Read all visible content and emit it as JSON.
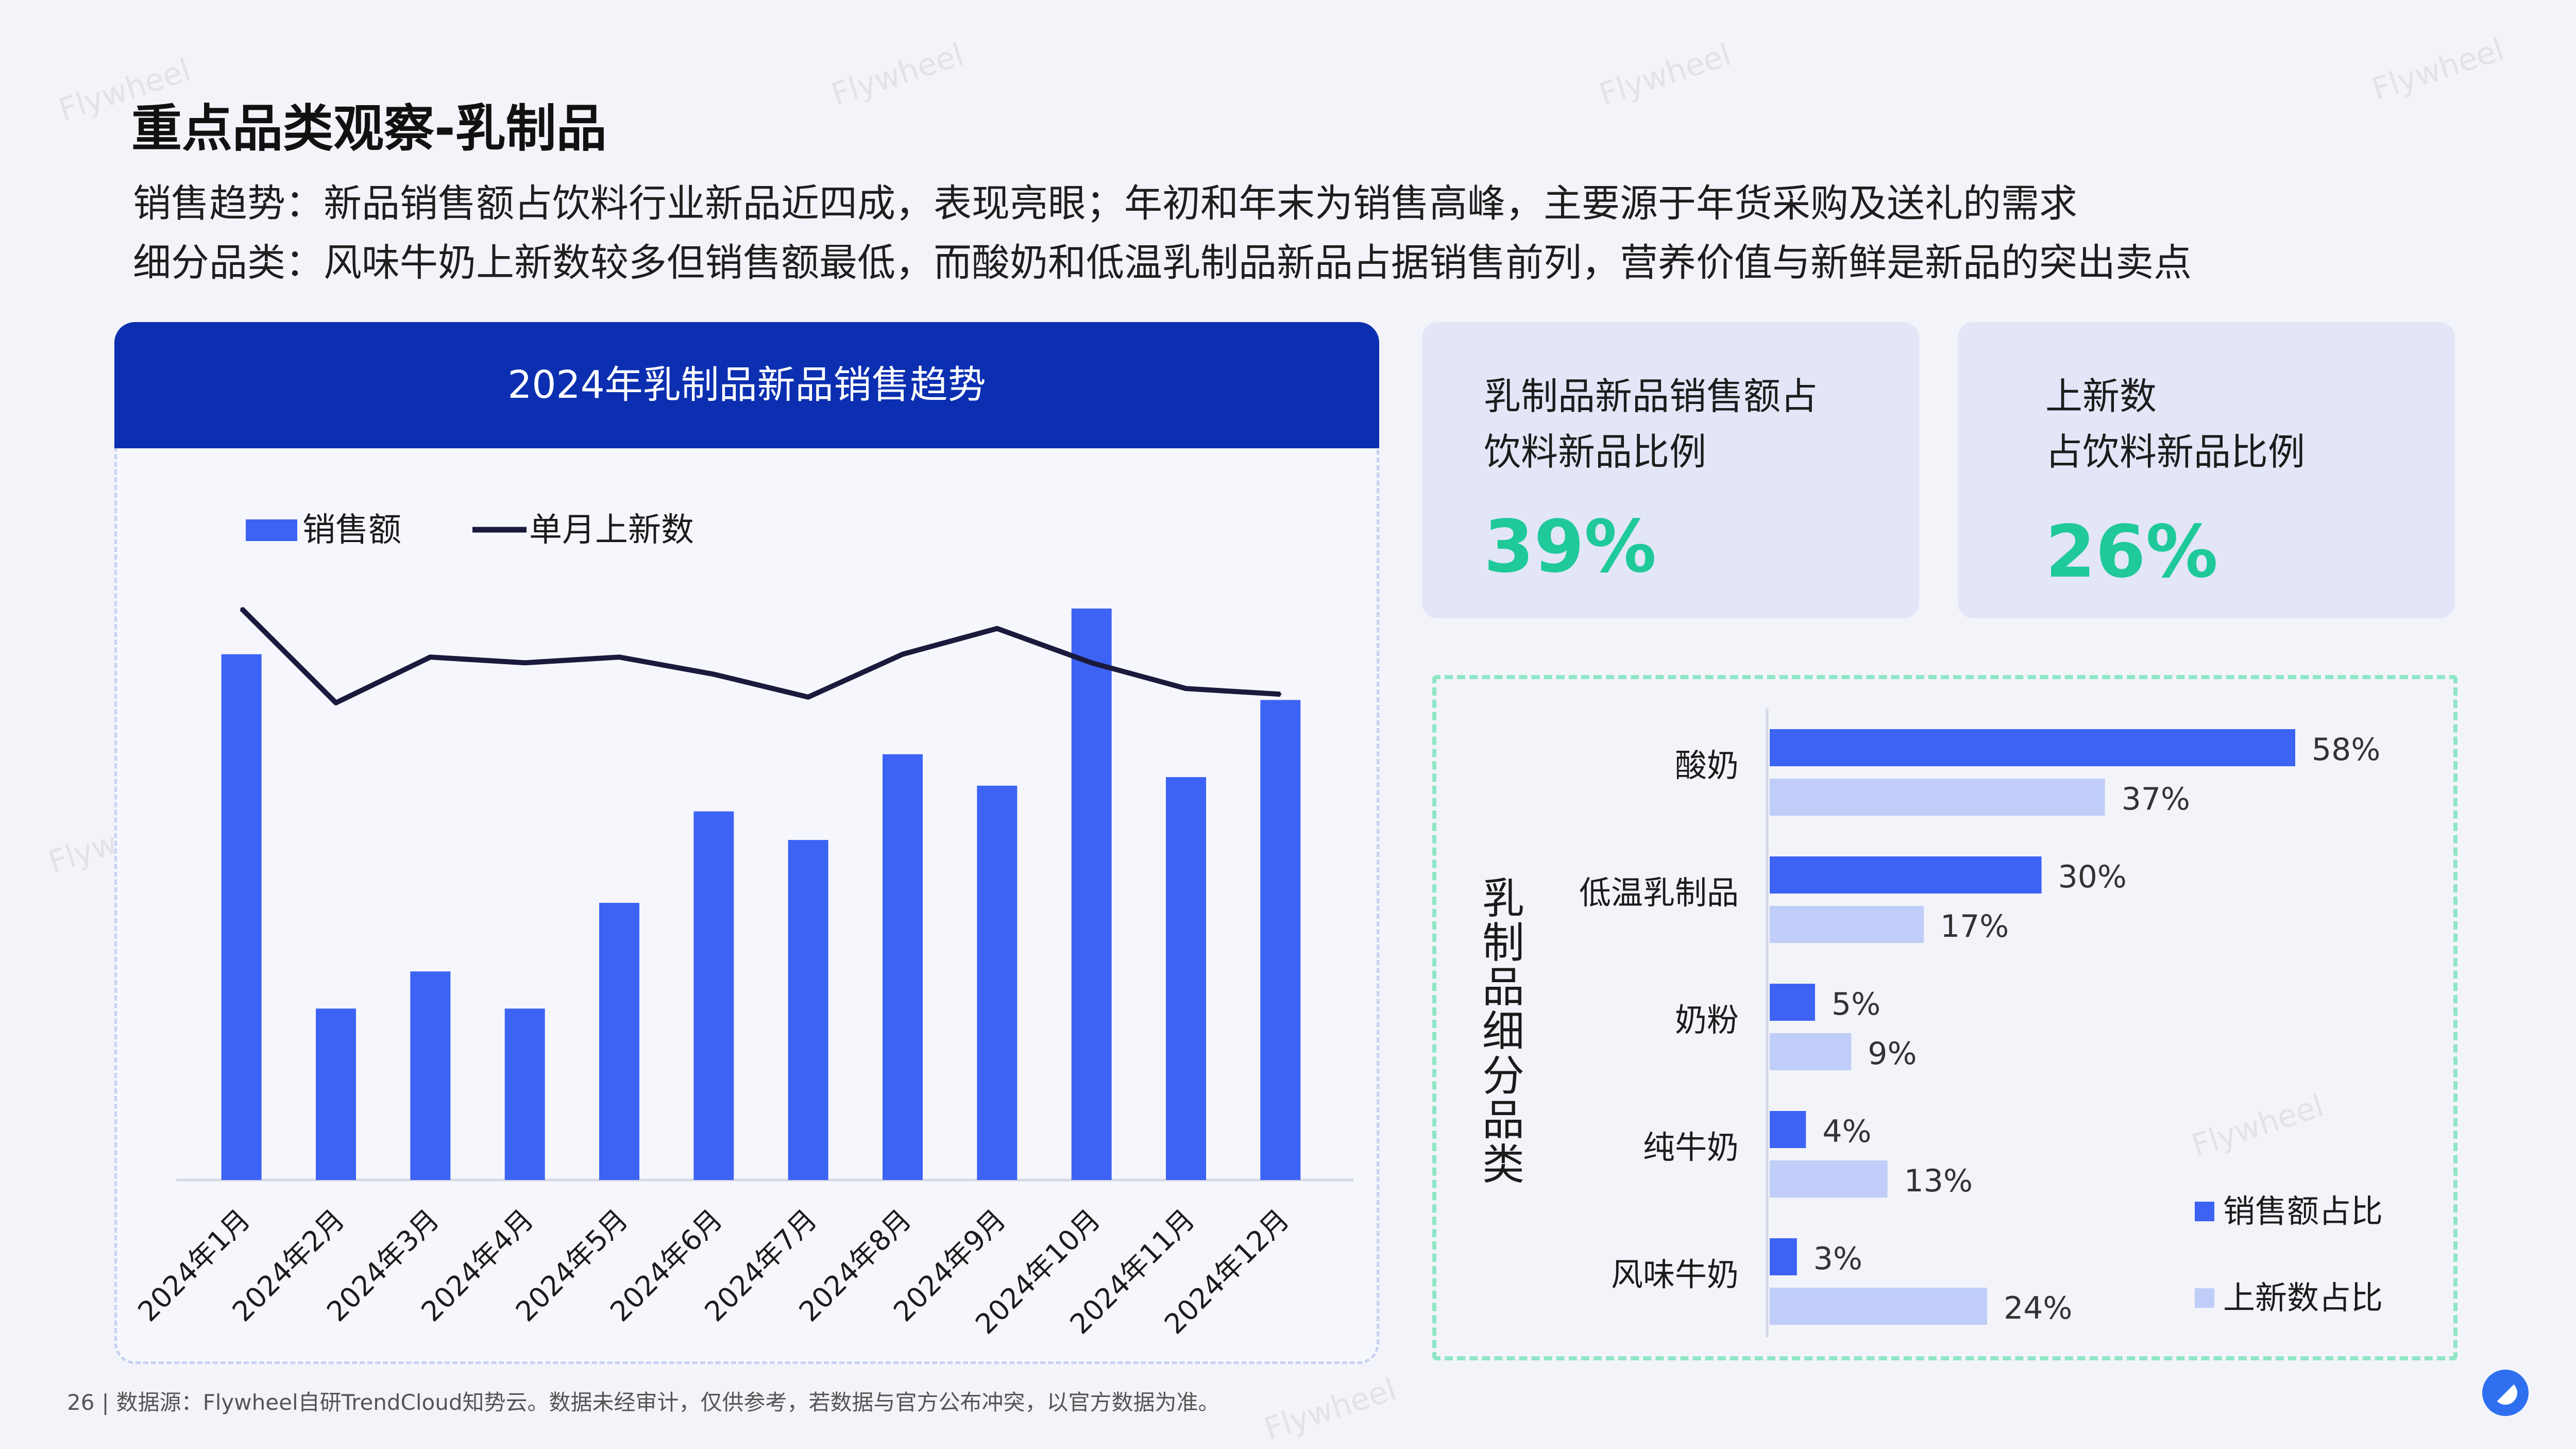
{
  "page": {
    "title": "重点品类观察-乳制品",
    "subtitle_1": "销售趋势：新品销售额占饮料行业新品近四成，表现亮眼；年初和年末为销售高峰，主要源于年货采购及送礼的需求",
    "subtitle_2": "细分品类：风味牛奶上新数较多但销售额最低，而酸奶和低温乳制品新品占据销售前列，营养价值与新鲜是新品的突出卖点",
    "page_number": "26",
    "source": "数据源：Flywheel自研TrendCloud知势云。数据未经审计，仅供参考，若数据与官方公布冲突，以官方数据为准。",
    "watermark": "Flywheel"
  },
  "kpis": [
    {
      "label_line1": "乳制品新品销售额占",
      "label_line2": "饮料新品比例",
      "value": "39%"
    },
    {
      "label_line1": "上新数",
      "label_line2": "占饮料新品比例",
      "value": "26%"
    }
  ],
  "colors": {
    "header_blue": "#0b2fb0",
    "bar_blue": "#3d63f5",
    "bar_light": "#bfcdf8",
    "line_dark": "#1a1a3d",
    "kpi_green": "#1fc99a"
  },
  "chart_data": [
    {
      "type": "bar",
      "title": "2024年乳制品新品销售趋势",
      "categories": [
        "2024年1月",
        "2024年2月",
        "2024年3月",
        "2024年4月",
        "2024年5月",
        "2024年6月",
        "2024年7月",
        "2024年8月",
        "2024年9月",
        "2024年10月",
        "2024年11月",
        "2024年12月"
      ],
      "series": [
        {
          "name": "销售额",
          "type": "bar",
          "values": [
            92,
            30,
            36.5,
            30,
            48.5,
            64.5,
            59.5,
            74.5,
            69,
            100,
            70.5,
            84
          ]
        },
        {
          "name": "单月上新数",
          "type": "line",
          "values": [
            100,
            83.5,
            91.5,
            90.5,
            91.5,
            88.5,
            84.5,
            92,
            96.5,
            90.5,
            86,
            85
          ]
        }
      ],
      "ylim": [
        0,
        110
      ],
      "legend": "top-left",
      "grid": false,
      "axes_values_shown": false
    },
    {
      "type": "bar",
      "orientation": "horizontal",
      "ylabel": "乳制品细分品类",
      "categories": [
        "酸奶",
        "低温乳制品",
        "奶粉",
        "纯牛奶",
        "风味牛奶"
      ],
      "series": [
        {
          "name": "销售额占比",
          "values": [
            58,
            30,
            5,
            4,
            3
          ]
        },
        {
          "name": "上新数占比",
          "values": [
            37,
            17,
            9,
            13,
            24
          ]
        }
      ],
      "value_suffix": "%",
      "xlim": [
        0,
        60
      ],
      "legend": "bottom-right"
    }
  ]
}
